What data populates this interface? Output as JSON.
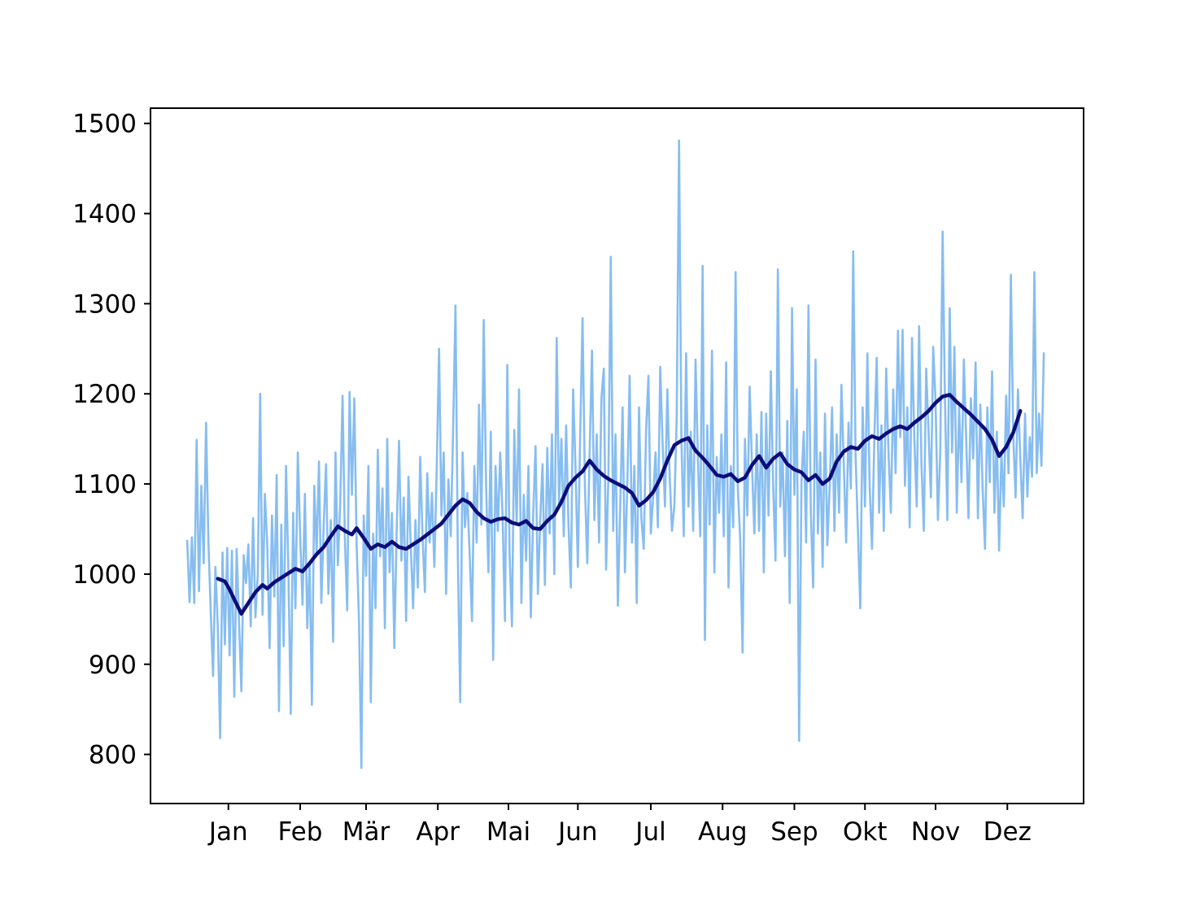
{
  "chart_data": {
    "type": "line",
    "title": "",
    "xlabel": "",
    "ylabel": "",
    "grid": false,
    "legend": null,
    "x_tick_labels": [
      "Jan",
      "Feb",
      "Mär",
      "Apr",
      "Mai",
      "Jun",
      "Jul",
      "Aug",
      "Sep",
      "Okt",
      "Nov",
      "Dez"
    ],
    "x_tick_days": [
      17.5,
      48,
      76,
      106.5,
      136.5,
      166,
      197,
      227.5,
      258,
      288,
      318,
      348.5
    ],
    "y_ticks": [
      800,
      900,
      1000,
      1100,
      1200,
      1300,
      1400,
      1500
    ],
    "xlim_days": [
      -15.6,
      380.9
    ],
    "ylim": [
      745.5,
      1516.9
    ],
    "colors": {
      "daily": "#87bdf0",
      "rolling": "#0d0d78",
      "axis": "#000000"
    },
    "series": [
      {
        "name": "daily",
        "start_day": 0,
        "values": [
          1037,
          969,
          1041,
          968,
          1149,
          981,
          1098,
          1012,
          1168,
          1035,
          957,
          887,
          1008,
          942,
          818,
          1024,
          922,
          1029,
          910,
          1026,
          864,
          1028,
          948,
          870,
          1021,
          990,
          1033,
          942,
          1062,
          952,
          1000,
          1200,
          955,
          1089,
          1033,
          918,
          1065,
          975,
          1110,
          848,
          1055,
          920,
          1120,
          1004,
          845,
          1068,
          962,
          1135,
          1042,
          966,
          1089,
          940,
          1012,
          855,
          1098,
          1022,
          1125,
          968,
          1055,
          1122,
          978,
          1060,
          925,
          1135,
          1010,
          1078,
          1198,
          1041,
          960,
          1202,
          1088,
          1195,
          1032,
          948,
          785,
          1065,
          998,
          1120,
          858,
          1045,
          962,
          1138,
          1020,
          1095,
          940,
          1150,
          1002,
          1068,
          918,
          1048,
          1148,
          1015,
          1085,
          948,
          1108,
          1032,
          962,
          1060,
          985,
          1130,
          1042,
          980,
          1112,
          1035,
          1090,
          1008,
          1115,
          1250,
          1065,
          1135,
          978,
          1105,
          1042,
          1160,
          1298,
          1020,
          858,
          1135,
          1052,
          1090,
          1022,
          948,
          1120,
          1035,
          1188,
          1055,
          1282,
          1098,
          1002,
          1158,
          905,
          1120,
          1048,
          1135,
          1065,
          948,
          1232,
          1022,
          942,
          1160,
          1055,
          1205,
          968,
          1088,
          1015,
          1120,
          952,
          1065,
          1142,
          978,
          1058,
          1122,
          988,
          1140,
          1045,
          1155,
          1000,
          1262,
          1078,
          1150,
          1042,
          1165,
          1055,
          985,
          1205,
          1120,
          1008,
          1155,
          1284,
          1098,
          1012,
          1135,
          1248,
          1060,
          1155,
          1035,
          1195,
          1228,
          1005,
          1110,
          1352,
          1048,
          1155,
          965,
          1075,
          1185,
          1002,
          1098,
          1220,
          1035,
          1120,
          968,
          1185,
          1062,
          1028,
          1160,
          1220,
          1045,
          1085,
          1135,
          1052,
          1230,
          1145,
          1075,
          1205,
          1108,
          1048,
          1075,
          1172,
          1481,
          1150,
          1042,
          1245,
          1075,
          1158,
          1048,
          1238,
          1128,
          1042,
          1342,
          927,
          1165,
          1055,
          1248,
          1002,
          1130,
          1068,
          1155,
          1042,
          1235,
          985,
          1120,
          1052,
          1335,
          1095,
          1038,
          913,
          1150,
          1065,
          1208,
          1120,
          1045,
          1155,
          1048,
          1180,
          1002,
          1178,
          1065,
          1225,
          1098,
          1015,
          1338,
          1075,
          1135,
          1020,
          1170,
          968,
          1295,
          1088,
          1205,
          815,
          1102,
          1158,
          1035,
          1298,
          1068,
          985,
          1238,
          1045,
          1135,
          1008,
          1178,
          1032,
          1098,
          1185,
          1048,
          1155,
          1068,
          1210,
          1122,
          1035,
          1168,
          1095,
          1358,
          1132,
          1048,
          962,
          1185,
          1075,
          1245,
          1098,
          1028,
          1152,
          1240,
          1068,
          1165,
          1048,
          1228,
          1135,
          1068,
          1205,
          1112,
          1270,
          1152,
          1271,
          1098,
          1185,
          1052,
          1262,
          1148,
          1075,
          1275,
          1122,
          1048,
          1228,
          1158,
          1085,
          1252,
          1192,
          1060,
          1135,
          1380,
          1192,
          1060,
          1295,
          1135,
          1252,
          1068,
          1185,
          1102,
          1238,
          1152,
          1062,
          1195,
          1128,
          1235,
          1062,
          1188,
          1095,
          1028,
          1185,
          1102,
          1225,
          1068,
          1158,
          1026,
          1135,
          1075,
          1198,
          1112,
          1332,
          1155,
          1085,
          1205,
          1128,
          1062,
          1178,
          1086,
          1152,
          1108,
          1335,
          1112,
          1178,
          1120,
          1245
        ]
      },
      {
        "name": "rolling-mean",
        "days": [
          13,
          16,
          18,
          20,
          23,
          26,
          29,
          32,
          34,
          37,
          40,
          43,
          46,
          49,
          52,
          55,
          58,
          61,
          64,
          67,
          70,
          72,
          75,
          78,
          81,
          84,
          87,
          90,
          93,
          96,
          99,
          102,
          105,
          108,
          111,
          114,
          117,
          120,
          123,
          126,
          129,
          132,
          135,
          138,
          141,
          144,
          147,
          150,
          153,
          156,
          159,
          162,
          165,
          168,
          171,
          174,
          177,
          180,
          183,
          186,
          189,
          192,
          195,
          198,
          201,
          204,
          207,
          210,
          213,
          216,
          219,
          222,
          225,
          228,
          231,
          234,
          237,
          240,
          243,
          246,
          249,
          252,
          255,
          258,
          261,
          264,
          267,
          270,
          273,
          276,
          279,
          282,
          285,
          288,
          291,
          294,
          297,
          300,
          303,
          306,
          309,
          312,
          315,
          318,
          321,
          324,
          327,
          330,
          333,
          336,
          339,
          342,
          345,
          348,
          351,
          354
        ],
        "values": [
          995,
          992,
          983,
          972,
          956,
          968,
          980,
          988,
          984,
          991,
          996,
          1001,
          1006,
          1003,
          1012,
          1022,
          1030,
          1042,
          1053,
          1048,
          1044,
          1051,
          1040,
          1028,
          1033,
          1030,
          1036,
          1030,
          1028,
          1033,
          1038,
          1044,
          1050,
          1056,
          1066,
          1076,
          1083,
          1079,
          1069,
          1062,
          1058,
          1061,
          1062,
          1057,
          1055,
          1059,
          1051,
          1050,
          1059,
          1066,
          1080,
          1098,
          1107,
          1114,
          1126,
          1116,
          1109,
          1104,
          1100,
          1096,
          1090,
          1076,
          1082,
          1091,
          1106,
          1126,
          1143,
          1148,
          1151,
          1137,
          1129,
          1120,
          1110,
          1108,
          1111,
          1103,
          1107,
          1121,
          1131,
          1118,
          1128,
          1134,
          1122,
          1116,
          1113,
          1104,
          1110,
          1100,
          1106,
          1125,
          1136,
          1141,
          1139,
          1148,
          1153,
          1150,
          1156,
          1161,
          1164,
          1161,
          1168,
          1174,
          1181,
          1190,
          1197,
          1199,
          1191,
          1184,
          1177,
          1169,
          1161,
          1149,
          1131,
          1141,
          1157,
          1181
        ]
      }
    ]
  }
}
